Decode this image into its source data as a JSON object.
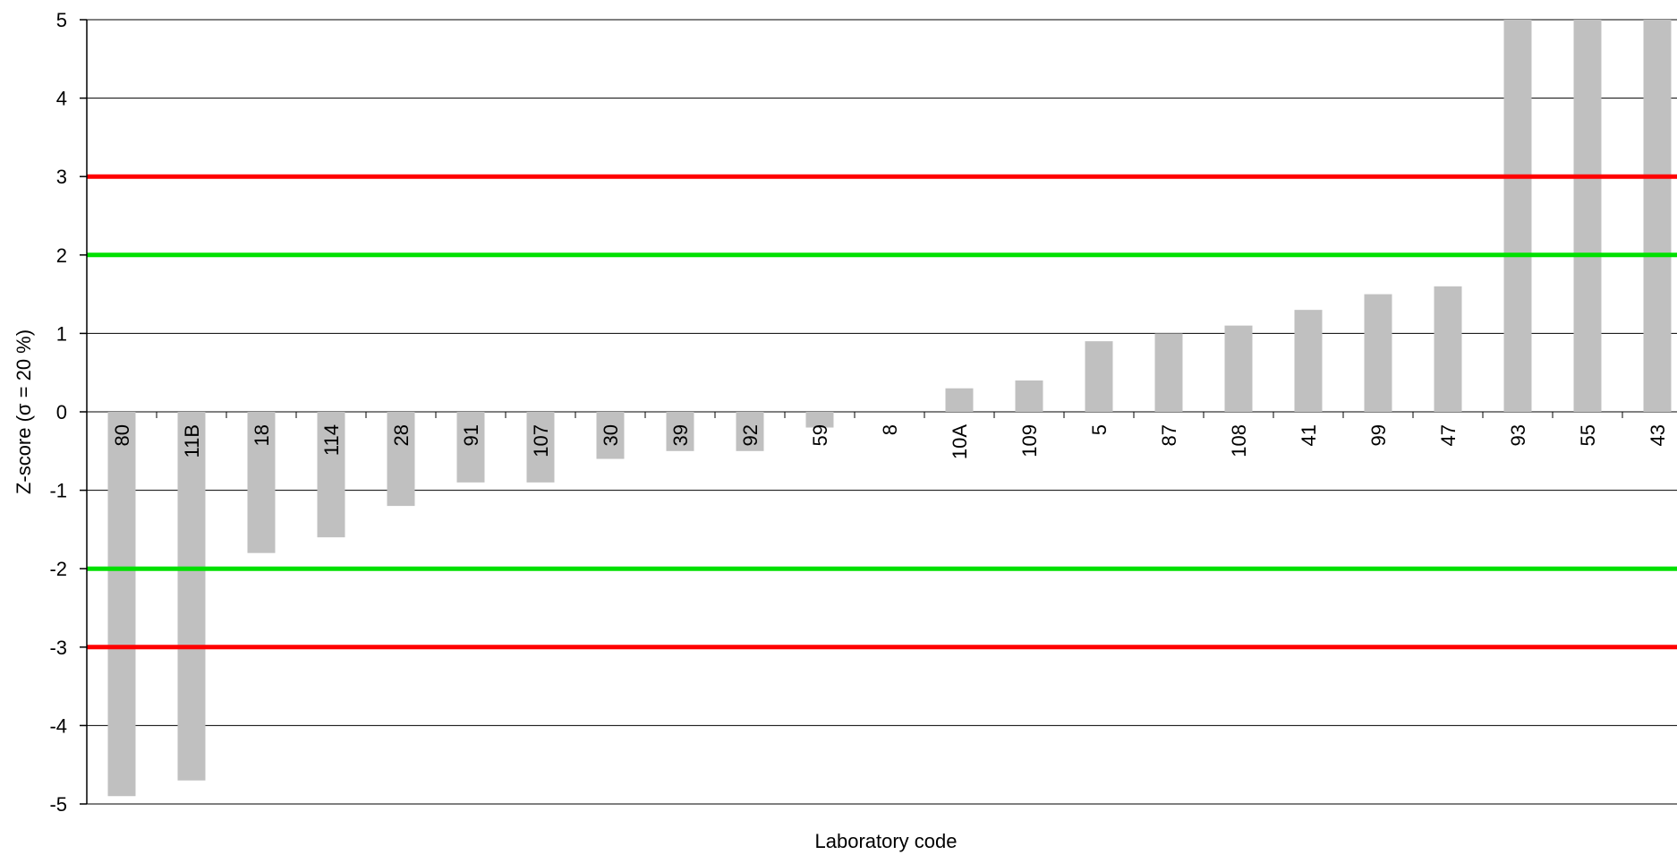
{
  "chart_data": {
    "type": "bar",
    "xlabel": "Laboratory code",
    "ylabel": "Z-score (σ = 20 %)",
    "ylim": [
      -5,
      5
    ],
    "yticks": [
      -5,
      -4,
      -3,
      -2,
      -1,
      0,
      1,
      2,
      3,
      4,
      5
    ],
    "grid": true,
    "categories": [
      "80",
      "11B",
      "18",
      "114",
      "28",
      "91",
      "107",
      "30",
      "39",
      "92",
      "59",
      "8",
      "10A",
      "109",
      "5",
      "87",
      "108",
      "41",
      "99",
      "47",
      "93",
      "55",
      "43"
    ],
    "values": [
      -4.9,
      -4.7,
      -1.8,
      -1.6,
      -1.2,
      -0.9,
      -0.9,
      -0.6,
      -0.5,
      -0.5,
      -0.2,
      0,
      0.3,
      0.4,
      0.9,
      1.0,
      1.1,
      1.3,
      1.5,
      1.6,
      5,
      5,
      5
    ],
    "reference_lines": [
      {
        "y": 3,
        "color": "#ff0000"
      },
      {
        "y": -3,
        "color": "#ff0000"
      },
      {
        "y": 2,
        "color": "#00e000"
      },
      {
        "y": -2,
        "color": "#00e000"
      }
    ],
    "colors": {
      "bar": "#c0c0c0",
      "grid": "#000000"
    }
  }
}
